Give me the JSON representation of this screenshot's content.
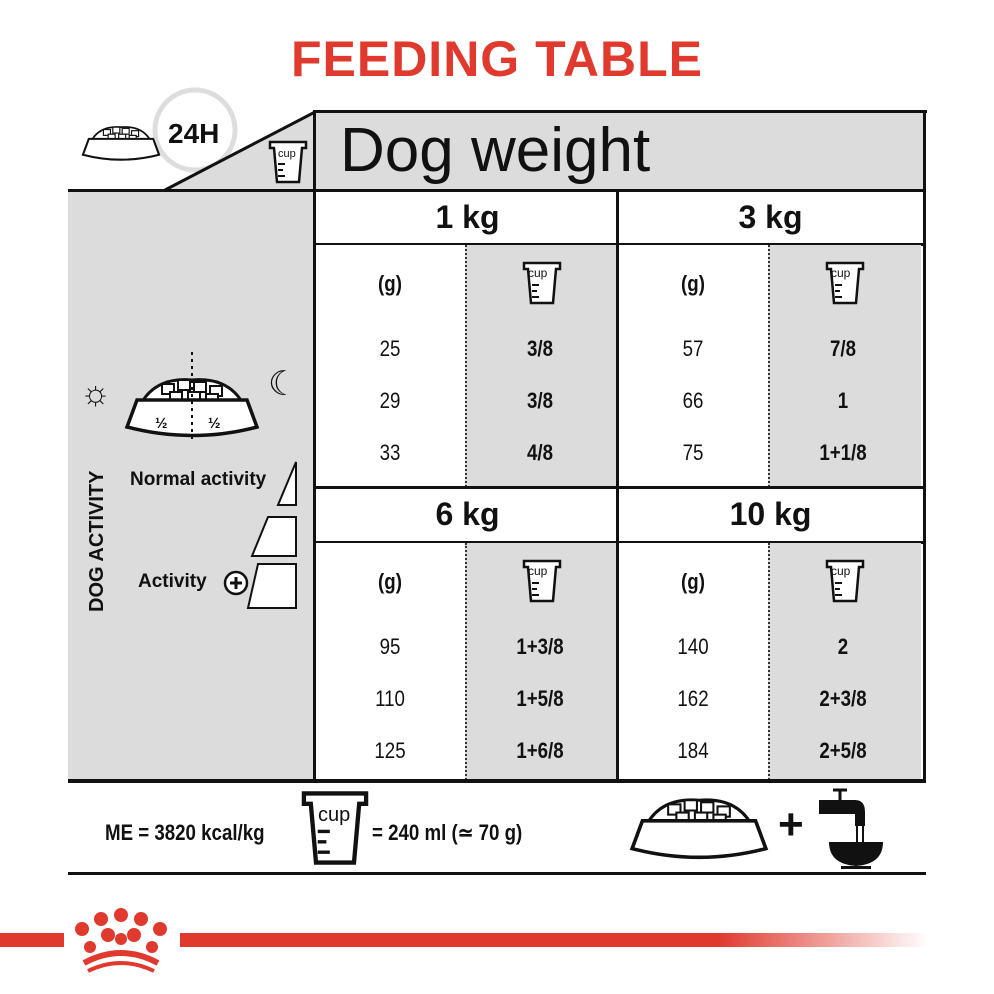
{
  "title": "FEEDING TABLE",
  "header": {
    "period": "24H",
    "cup_icon_label": "cup",
    "column_title": "Dog weight"
  },
  "left_panel": {
    "half_left": "½",
    "half_right": "½",
    "section_label": "DOG ACTIVITY",
    "normal": "Normal activity",
    "activity": "Activity"
  },
  "weights": [
    {
      "label": "1 kg",
      "g_header": "(g)",
      "cup_label": "cup",
      "grams": [
        "25",
        "29",
        "33"
      ],
      "cups": [
        "3/8",
        "3/8",
        "4/8"
      ]
    },
    {
      "label": "3 kg",
      "g_header": "(g)",
      "cup_label": "cup",
      "grams": [
        "57",
        "66",
        "75"
      ],
      "cups": [
        "7/8",
        "1",
        "1+1/8"
      ]
    },
    {
      "label": "6 kg",
      "g_header": "(g)",
      "cup_label": "cup",
      "grams": [
        "95",
        "110",
        "125"
      ],
      "cups": [
        "1+3/8",
        "1+5/8",
        "1+6/8"
      ]
    },
    {
      "label": "10 kg",
      "g_header": "(g)",
      "cup_label": "cup",
      "grams": [
        "140",
        "162",
        "184"
      ],
      "cups": [
        "2",
        "2+3/8",
        "2+5/8"
      ]
    }
  ],
  "footer": {
    "energy": "ME = 3820 kcal/kg",
    "cup_label": "cup",
    "cup_equiv": "= 240 ml (≃ 70 g)",
    "plus": "+"
  },
  "colors": {
    "accent": "#e03a2f",
    "panel": "#dcdcdc"
  }
}
